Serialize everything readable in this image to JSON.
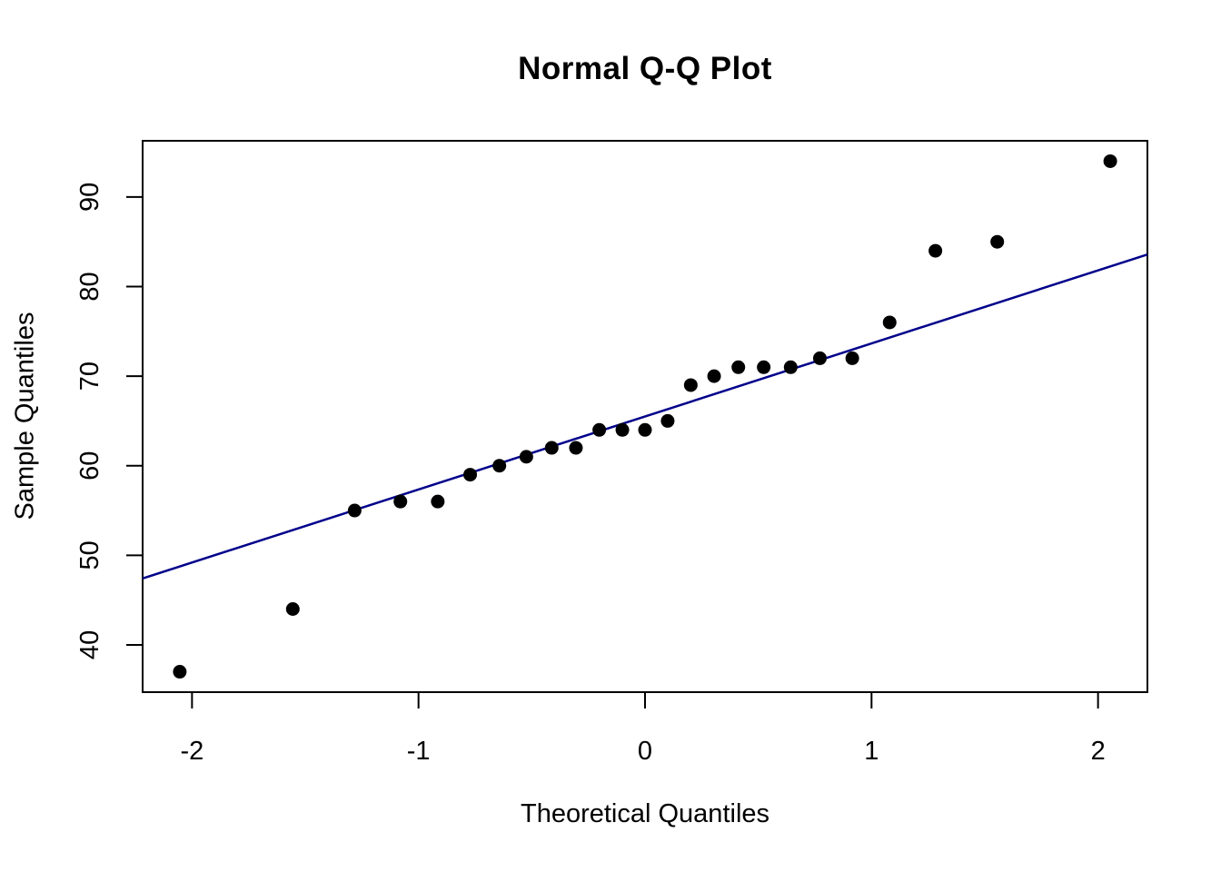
{
  "chart_data": {
    "type": "scatter",
    "title": "Normal Q-Q Plot",
    "xlabel": "Theoretical Quantiles",
    "ylabel": "Sample Quantiles",
    "x_ticks": [
      -2,
      -1,
      0,
      1,
      2
    ],
    "y_ticks": [
      40,
      50,
      60,
      70,
      80,
      90
    ],
    "xlim": [
      -2.218,
      2.218
    ],
    "ylim": [
      34.72,
      96.28
    ],
    "grid": false,
    "legend": "none",
    "n_points": 25,
    "x": [
      -2.054,
      -1.555,
      -1.282,
      -1.08,
      -0.915,
      -0.772,
      -0.643,
      -0.524,
      -0.412,
      -0.305,
      -0.202,
      -0.1,
      0.0,
      0.1,
      0.202,
      0.305,
      0.412,
      0.524,
      0.643,
      0.772,
      0.915,
      1.08,
      1.282,
      1.555,
      2.054
    ],
    "y": [
      37,
      44,
      55,
      56,
      56,
      59,
      60,
      61,
      62,
      62,
      64,
      64,
      64,
      65,
      69,
      70,
      71,
      71,
      71,
      72,
      72,
      76,
      84,
      85,
      94
    ],
    "reference_line": {
      "type": "qqline",
      "intercept": 65.5,
      "slope": 8.155,
      "color": "#00008B",
      "width": 2.5
    },
    "point_style": {
      "shape": "filled-circle",
      "color": "#000000",
      "radius": 7.5
    },
    "axis_color": "#000000",
    "background_color": "#ffffff"
  }
}
